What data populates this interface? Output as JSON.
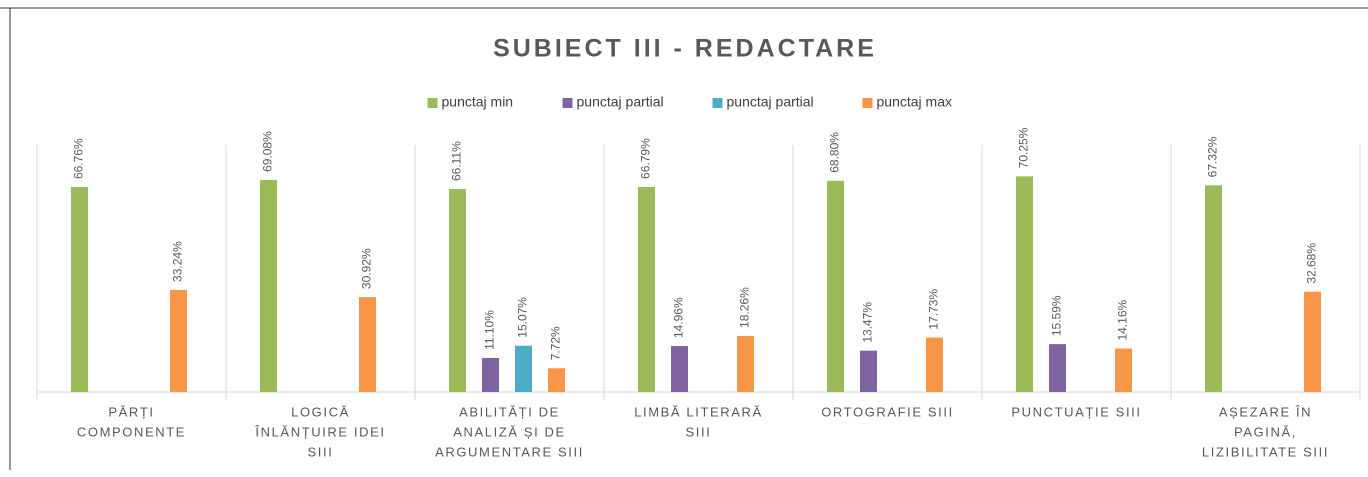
{
  "chart_data": {
    "type": "bar",
    "title": "SUBIECT III  -  REDACTARE",
    "categories": [
      [
        "PĂRȚI",
        "COMPONENTE"
      ],
      [
        "LOGICĂ",
        "ÎNLĂNȚUIRE IDEI",
        "SIII"
      ],
      [
        "ABILITĂȚI DE",
        "ANALIZĂ ȘI DE",
        "ARGUMENTARE SIII"
      ],
      [
        "LIMBĂ LITERARĂ",
        "SIII"
      ],
      [
        "ORTOGRAFIE SIII"
      ],
      [
        "PUNCTUAȚIE SIII"
      ],
      [
        "AȘEZARE ÎN",
        "PAGINĂ,",
        "LIZIBILITATE SIII"
      ]
    ],
    "series": [
      {
        "name": "punctaj min",
        "color": "#9bbb59",
        "values": [
          66.76,
          69.08,
          66.11,
          66.79,
          68.8,
          70.25,
          67.32
        ],
        "value_labels": [
          "66.76%",
          "69.08%",
          "66.11%",
          "66.79%",
          "68.80%",
          "70.25%",
          "67.32%"
        ]
      },
      {
        "name": "punctaj partial",
        "color": "#8064a2",
        "values": [
          null,
          null,
          11.1,
          14.96,
          13.47,
          15.59,
          null
        ],
        "value_labels": [
          null,
          null,
          "11.10%",
          "14.96%",
          "13.47%",
          "15.59%",
          null
        ]
      },
      {
        "name": "punctaj partial",
        "color": "#4bacc6",
        "values": [
          null,
          null,
          15.07,
          null,
          null,
          null,
          null
        ],
        "value_labels": [
          null,
          null,
          "15.07%",
          null,
          null,
          null,
          null
        ]
      },
      {
        "name": "punctaj max",
        "color": "#f79646",
        "values": [
          33.24,
          30.92,
          7.72,
          18.26,
          17.73,
          14.16,
          32.68
        ],
        "value_labels": [
          "33.24%",
          "30.92%",
          "7.72%",
          "18.26%",
          "17.73%",
          "14.16%",
          "32.68%"
        ]
      }
    ]
  }
}
